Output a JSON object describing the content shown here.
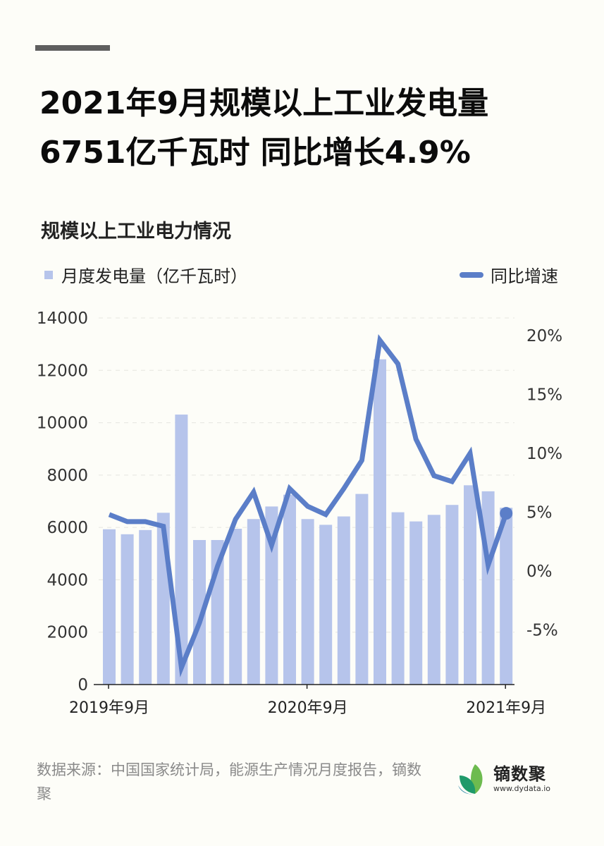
{
  "header": {
    "title_line1": "2021年9月规模以上工业发电量",
    "title_line2": "6751亿千瓦时 同比增长4.9%"
  },
  "chart_data": {
    "type": "bar",
    "title": "规模以上工业电力情况",
    "legend": {
      "bar_label": "月度发电量（亿千瓦时）",
      "line_label": "同比增速",
      "position": "top"
    },
    "colors": {
      "bar": "#b6c4eb",
      "line": "#5b7ec8"
    },
    "categories": [
      "2019-09",
      "2019-10",
      "2019-11",
      "2019-12",
      "2020-01/02",
      "2020-03",
      "2020-04",
      "2020-05",
      "2020-06",
      "2020-07",
      "2020-08",
      "2020-09",
      "2020-10",
      "2020-11",
      "2020-12",
      "2021-01/02",
      "2021-03",
      "2021-04",
      "2021-05",
      "2021-06",
      "2021-07",
      "2021-08",
      "2021-09"
    ],
    "x_tick_labels": [
      "2019年9月",
      "2020年9月",
      "2021年9月"
    ],
    "x_tick_indices": [
      0,
      11,
      22
    ],
    "series": [
      {
        "name": "月度发电量（亿千瓦时）",
        "type": "bar",
        "axis": "left",
        "values": [
          5930,
          5740,
          5900,
          6560,
          10310,
          5520,
          5520,
          5950,
          6320,
          6800,
          7250,
          6320,
          6100,
          6420,
          7280,
          12420,
          6580,
          6230,
          6480,
          6860,
          7610,
          7380,
          6751
        ]
      },
      {
        "name": "同比增速",
        "type": "line",
        "axis": "right",
        "unit": "%",
        "values": [
          4.8,
          4.2,
          4.2,
          3.8,
          -8.2,
          -4.4,
          0.4,
          4.4,
          6.7,
          2.2,
          7.0,
          5.5,
          4.8,
          7.0,
          9.4,
          19.6,
          17.6,
          11.2,
          8.1,
          7.6,
          10.0,
          0.5,
          4.9
        ]
      }
    ],
    "y_left": {
      "ticks": [
        "0",
        "2000",
        "4000",
        "6000",
        "8000",
        "10000",
        "12000",
        "14000"
      ],
      "ylim": [
        0,
        14000
      ]
    },
    "y_right": {
      "ticks": [
        "-5%",
        "0%",
        "5%",
        "10%",
        "15%",
        "20%"
      ],
      "ylim": [
        -9.7,
        21.7
      ]
    },
    "grid": "dashed horizontal"
  },
  "footer": {
    "source": "数据来源：中国国家统计局，能源生产情况月度报告，镝数聚",
    "logo_name": "镝数聚",
    "logo_url": "www.dydata.io"
  }
}
